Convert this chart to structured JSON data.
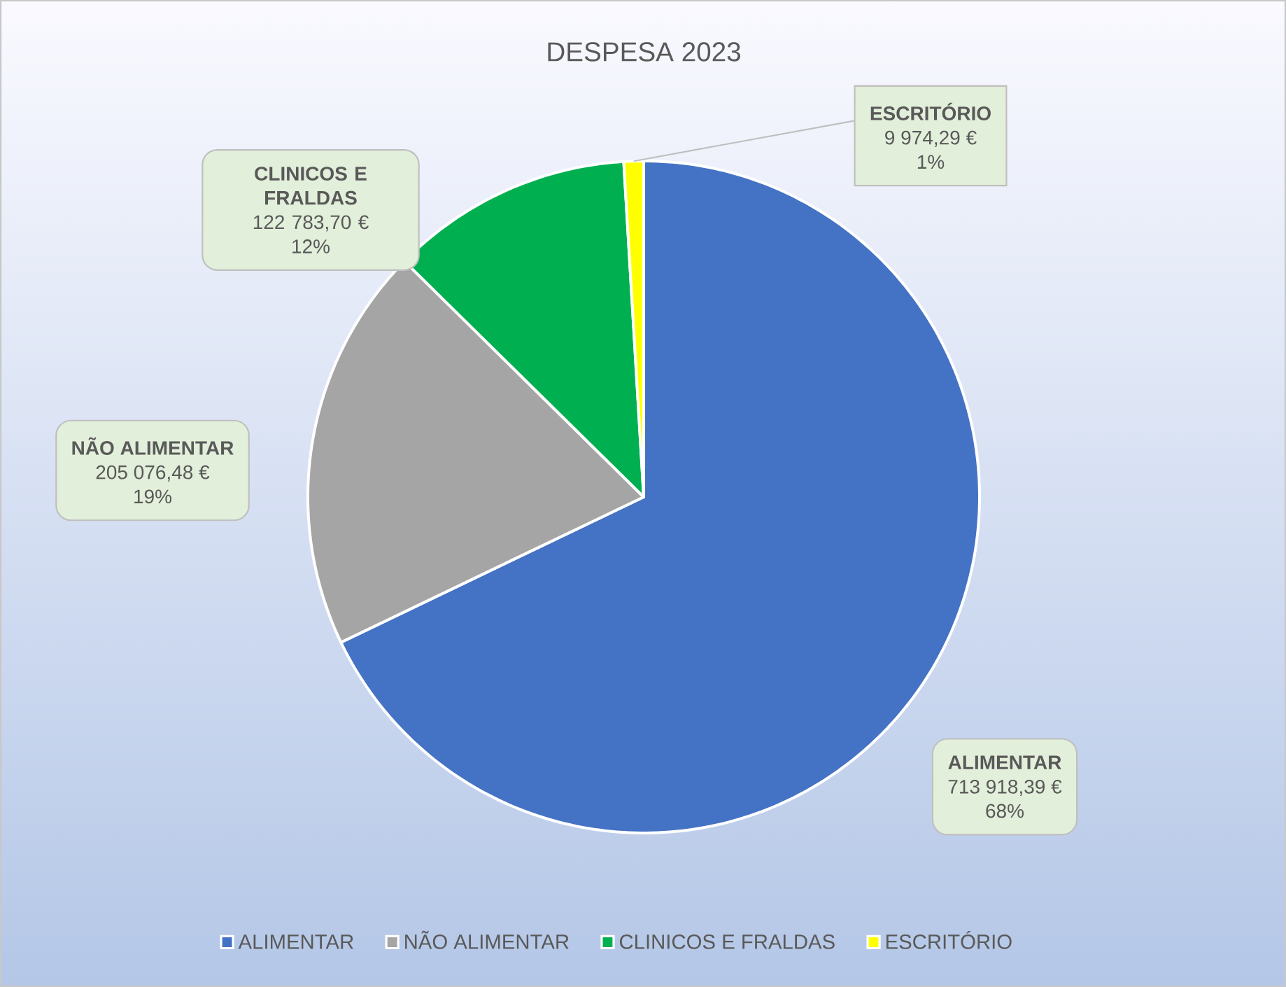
{
  "chart_data": {
    "type": "pie",
    "title": "DESPESA 2023",
    "categories": [
      "ALIMENTAR",
      "NÃO ALIMENTAR",
      "CLINICOS E FRALDAS",
      "ESCRITÓRIO"
    ],
    "values": [
      713918.39,
      205076.48,
      122783.7,
      9974.29
    ],
    "colors": [
      "#4472c4",
      "#a5a5a5",
      "#00b050",
      "#ffff00"
    ],
    "value_labels": [
      "713 918,39 €",
      "205 076,48 €",
      "122 783,70 €",
      "9 974,29 €"
    ],
    "annotations": [
      "68%",
      "19%",
      "12%",
      "1%"
    ],
    "legend": "bottom"
  }
}
